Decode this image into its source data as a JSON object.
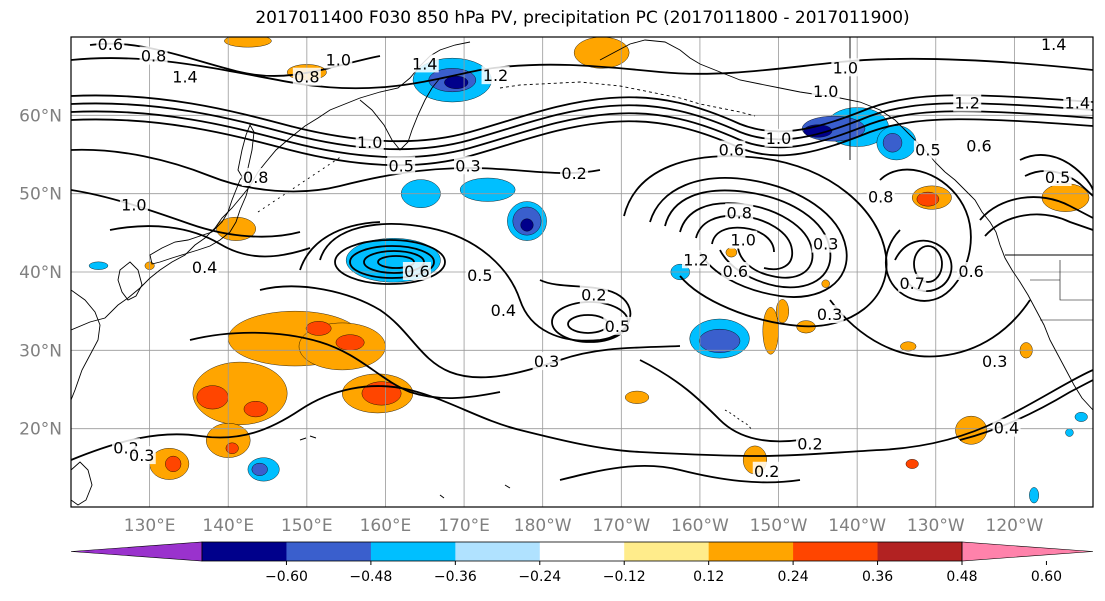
{
  "title": "2017011400 F030 850 hPa PV, precipitation PC (2017011800 - 2017011900)",
  "map": {
    "lat_labels": [
      {
        "label": "60°N",
        "lat": 60
      },
      {
        "label": "50°N",
        "lat": 50
      },
      {
        "label": "40°N",
        "lat": 40
      },
      {
        "label": "30°N",
        "lat": 30
      },
      {
        "label": "20°N",
        "lat": 20
      }
    ],
    "lon_labels": [
      "130°E",
      "140°E",
      "150°E",
      "160°E",
      "170°E",
      "180°W",
      "170°W",
      "160°W",
      "150°W",
      "140°W",
      "130°W",
      "120°W"
    ],
    "lon_range": [
      120,
      250
    ],
    "lat_range": [
      10,
      70
    ],
    "gridlines": true
  },
  "colorbar": {
    "tick_labels": [
      "−0.60",
      "−0.48",
      "−0.36",
      "−0.24",
      "−0.12",
      "0.12",
      "0.24",
      "0.36",
      "0.48",
      "0.60"
    ],
    "colors": [
      "#9a32cd",
      "#00008b",
      "#3a5fcd",
      "#00bfff",
      "#b0e2ff",
      "#ffffff",
      "#ffec8b",
      "#ffa500",
      "#ff4500",
      "#b22222",
      "#ff82ab"
    ],
    "extend": "both"
  },
  "contour_labels": [
    {
      "text": "0.6",
      "lon": 125.0,
      "lat": 69.0
    },
    {
      "text": "0.8",
      "lon": 130.5,
      "lat": 67.5
    },
    {
      "text": "1.4",
      "lon": 134.5,
      "lat": 64.8
    },
    {
      "text": "0.8",
      "lon": 150.0,
      "lat": 64.8
    },
    {
      "text": "1.2",
      "lon": 174.0,
      "lat": 65.0
    },
    {
      "text": "1.4",
      "lon": 165.0,
      "lat": 66.5
    },
    {
      "text": "1.0",
      "lon": 158.0,
      "lat": 56.5
    },
    {
      "text": "0.5",
      "lon": 162.0,
      "lat": 53.5
    },
    {
      "text": "0.3",
      "lon": 170.5,
      "lat": 53.5
    },
    {
      "text": "0.2",
      "lon": 184.0,
      "lat": 52.5
    },
    {
      "text": "0.8",
      "lon": 143.5,
      "lat": 52.0
    },
    {
      "text": "1.0",
      "lon": 128.0,
      "lat": 48.5
    },
    {
      "text": "0.4",
      "lon": 137.0,
      "lat": 40.5
    },
    {
      "text": "0.6",
      "lon": 164.0,
      "lat": 40.0
    },
    {
      "text": "0.5",
      "lon": 172.0,
      "lat": 39.5
    },
    {
      "text": "0.4",
      "lon": 175.0,
      "lat": 35.0
    },
    {
      "text": "0.2",
      "lon": 186.5,
      "lat": 37.0
    },
    {
      "text": "0.5",
      "lon": 189.5,
      "lat": 33.0
    },
    {
      "text": "0.3",
      "lon": 180.5,
      "lat": 28.5
    },
    {
      "text": "0.6",
      "lon": 204.0,
      "lat": 55.5
    },
    {
      "text": "1.0",
      "lon": 210.0,
      "lat": 57.0
    },
    {
      "text": "1.0",
      "lon": 216.0,
      "lat": 63.0
    },
    {
      "text": "0.8",
      "lon": 205.0,
      "lat": 47.5
    },
    {
      "text": "1.0",
      "lon": 205.5,
      "lat": 44.0
    },
    {
      "text": "1.2",
      "lon": 199.5,
      "lat": 41.5
    },
    {
      "text": "0.6",
      "lon": 204.5,
      "lat": 40.0
    },
    {
      "text": "0.3",
      "lon": 216.0,
      "lat": 43.5
    },
    {
      "text": "0.3",
      "lon": 216.5,
      "lat": 34.5
    },
    {
      "text": "0.7",
      "lon": 227.0,
      "lat": 38.5
    },
    {
      "text": "0.8",
      "lon": 223.0,
      "lat": 49.5
    },
    {
      "text": "0.5",
      "lon": 229.0,
      "lat": 55.5
    },
    {
      "text": "0.6",
      "lon": 234.5,
      "lat": 40.0
    },
    {
      "text": "0.6",
      "lon": 235.5,
      "lat": 56.0
    },
    {
      "text": "1.2",
      "lon": 234.0,
      "lat": 61.5
    },
    {
      "text": "1.4",
      "lon": 245.0,
      "lat": 69.0
    },
    {
      "text": "1.4",
      "lon": 248.0,
      "lat": 61.5
    },
    {
      "text": "0.5",
      "lon": 245.5,
      "lat": 52.0
    },
    {
      "text": "0.3",
      "lon": 237.5,
      "lat": 28.5
    },
    {
      "text": "0.4",
      "lon": 239.0,
      "lat": 20.0
    },
    {
      "text": "0.2",
      "lon": 214.0,
      "lat": 18.0
    },
    {
      "text": "0.2",
      "lon": 208.5,
      "lat": 14.5
    },
    {
      "text": "0.2",
      "lon": 127.0,
      "lat": 17.5
    },
    {
      "text": "0.3",
      "lon": 129.0,
      "lat": 16.5
    },
    {
      "text": "1.0",
      "lon": 218.5,
      "lat": 66.0
    },
    {
      "text": "1.0",
      "lon": 154.0,
      "lat": 67.0
    }
  ],
  "precip_patches": [
    {
      "level": "#ffa500",
      "lon": 148.5,
      "lat": 31.5,
      "rx": 8.5,
      "ry": 3.5
    },
    {
      "level": "#ffa500",
      "lon": 154.5,
      "lat": 30.5,
      "rx": 5.5,
      "ry": 3.0
    },
    {
      "level": "#ff4500",
      "lon": 151.5,
      "lat": 32.8,
      "rx": 1.6,
      "ry": 0.9
    },
    {
      "level": "#ff4500",
      "lon": 155.5,
      "lat": 31.0,
      "rx": 1.8,
      "ry": 1.0
    },
    {
      "level": "#ffa500",
      "lon": 141.5,
      "lat": 24.5,
      "rx": 6.0,
      "ry": 4.0
    },
    {
      "level": "#ff4500",
      "lon": 138.0,
      "lat": 24.0,
      "rx": 2.0,
      "ry": 1.5
    },
    {
      "level": "#ff4500",
      "lon": 143.5,
      "lat": 22.5,
      "rx": 1.5,
      "ry": 1.0
    },
    {
      "level": "#ffa500",
      "lon": 159.0,
      "lat": 24.5,
      "rx": 4.5,
      "ry": 2.5
    },
    {
      "level": "#ff4500",
      "lon": 159.5,
      "lat": 24.5,
      "rx": 2.5,
      "ry": 1.5
    },
    {
      "level": "#ffa500",
      "lon": 140.0,
      "lat": 18.5,
      "rx": 2.8,
      "ry": 2.2
    },
    {
      "level": "#ff4500",
      "lon": 140.5,
      "lat": 17.5,
      "rx": 0.8,
      "ry": 0.7
    },
    {
      "level": "#ffa500",
      "lon": 132.5,
      "lat": 15.5,
      "rx": 2.5,
      "ry": 2.0
    },
    {
      "level": "#ff4500",
      "lon": 133.0,
      "lat": 15.5,
      "rx": 1.0,
      "ry": 1.0
    },
    {
      "level": "#00bfff",
      "lon": 144.5,
      "lat": 14.8,
      "rx": 2.0,
      "ry": 1.5
    },
    {
      "level": "#3a5fcd",
      "lon": 144.0,
      "lat": 14.8,
      "rx": 1.0,
      "ry": 0.8
    },
    {
      "level": "#00bfff",
      "lon": 161.0,
      "lat": 41.5,
      "rx": 6.0,
      "ry": 2.8
    },
    {
      "level": "#00bfff",
      "lon": 178.0,
      "lat": 46.5,
      "rx": 2.5,
      "ry": 2.5
    },
    {
      "level": "#3a5fcd",
      "lon": 178.0,
      "lat": 46.5,
      "rx": 1.8,
      "ry": 1.8
    },
    {
      "level": "#00008b",
      "lon": 178.0,
      "lat": 46.0,
      "rx": 0.8,
      "ry": 0.8
    },
    {
      "level": "#00bfff",
      "lon": 164.5,
      "lat": 50.0,
      "rx": 2.5,
      "ry": 1.8
    },
    {
      "level": "#00bfff",
      "lon": 173.0,
      "lat": 50.5,
      "rx": 3.5,
      "ry": 1.5
    },
    {
      "level": "#00bfff",
      "lon": 168.5,
      "lat": 64.5,
      "rx": 5.0,
      "ry": 2.8
    },
    {
      "level": "#3a5fcd",
      "lon": 168.5,
      "lat": 64.5,
      "rx": 3.0,
      "ry": 1.5
    },
    {
      "level": "#00008b",
      "lon": 169.0,
      "lat": 64.2,
      "rx": 1.5,
      "ry": 0.8
    },
    {
      "level": "#ffa500",
      "lon": 142.5,
      "lat": 69.5,
      "rx": 3.0,
      "ry": 0.8
    },
    {
      "level": "#ffa500",
      "lon": 150.0,
      "lat": 65.5,
      "rx": 2.5,
      "ry": 1.0
    },
    {
      "level": "#ffa500",
      "lon": 187.5,
      "lat": 68.0,
      "rx": 3.5,
      "ry": 2.0
    },
    {
      "level": "#ffa500",
      "lon": 141.0,
      "lat": 45.5,
      "rx": 2.5,
      "ry": 1.5
    },
    {
      "level": "#00bfff",
      "lon": 123.5,
      "lat": 40.8,
      "rx": 1.2,
      "ry": 0.5
    },
    {
      "level": "#ffa500",
      "lon": 130.0,
      "lat": 40.8,
      "rx": 0.6,
      "ry": 0.5
    },
    {
      "level": "#00bfff",
      "lon": 220.0,
      "lat": 58.5,
      "rx": 4.0,
      "ry": 2.5
    },
    {
      "level": "#3a5fcd",
      "lon": 217.0,
      "lat": 58.3,
      "rx": 4.0,
      "ry": 1.6
    },
    {
      "level": "#00008b",
      "lon": 215.0,
      "lat": 58.0,
      "rx": 1.8,
      "ry": 0.8
    },
    {
      "level": "#00bfff",
      "lon": 225.0,
      "lat": 56.5,
      "rx": 2.5,
      "ry": 2.2
    },
    {
      "level": "#3a5fcd",
      "lon": 224.5,
      "lat": 56.5,
      "rx": 1.2,
      "ry": 1.2
    },
    {
      "level": "#ffa500",
      "lon": 229.5,
      "lat": 49.5,
      "rx": 2.5,
      "ry": 1.5
    },
    {
      "level": "#ff4500",
      "lon": 229.0,
      "lat": 49.3,
      "rx": 1.4,
      "ry": 0.9
    },
    {
      "level": "#ffa500",
      "lon": 246.5,
      "lat": 49.5,
      "rx": 3.0,
      "ry": 1.8
    },
    {
      "level": "#00bfff",
      "lon": 202.5,
      "lat": 31.5,
      "rx": 3.8,
      "ry": 2.5
    },
    {
      "level": "#3a5fcd",
      "lon": 202.5,
      "lat": 31.2,
      "rx": 2.6,
      "ry": 1.5
    },
    {
      "level": "#ffa500",
      "lon": 209.0,
      "lat": 32.5,
      "rx": 1.0,
      "ry": 3.0
    },
    {
      "level": "#ffa500",
      "lon": 210.5,
      "lat": 35.0,
      "rx": 0.8,
      "ry": 1.5
    },
    {
      "level": "#00bfff",
      "lon": 197.5,
      "lat": 40.0,
      "rx": 1.2,
      "ry": 1.0
    },
    {
      "level": "#ffa500",
      "lon": 204.0,
      "lat": 42.5,
      "rx": 0.7,
      "ry": 0.6
    },
    {
      "level": "#ffa500",
      "lon": 216.0,
      "lat": 38.5,
      "rx": 0.5,
      "ry": 0.5
    },
    {
      "level": "#ffa500",
      "lon": 213.5,
      "lat": 33.0,
      "rx": 1.2,
      "ry": 0.8
    },
    {
      "level": "#ffa500",
      "lon": 192.0,
      "lat": 24.0,
      "rx": 1.5,
      "ry": 0.8
    },
    {
      "level": "#ffa500",
      "lon": 207.0,
      "lat": 16.0,
      "rx": 1.5,
      "ry": 1.8
    },
    {
      "level": "#ffa500",
      "lon": 234.5,
      "lat": 19.8,
      "rx": 2.0,
      "ry": 1.8
    },
    {
      "level": "#ff4500",
      "lon": 227.0,
      "lat": 15.5,
      "rx": 0.8,
      "ry": 0.6
    },
    {
      "level": "#ffa500",
      "lon": 226.5,
      "lat": 30.5,
      "rx": 1.0,
      "ry": 0.6
    },
    {
      "level": "#ffa500",
      "lon": 241.5,
      "lat": 30.0,
      "rx": 0.8,
      "ry": 1.0
    },
    {
      "level": "#00bfff",
      "lon": 248.5,
      "lat": 21.5,
      "rx": 0.8,
      "ry": 0.6
    },
    {
      "level": "#00bfff",
      "lon": 242.5,
      "lat": 11.5,
      "rx": 0.6,
      "ry": 1.0
    },
    {
      "level": "#00bfff",
      "lon": 247.0,
      "lat": 19.5,
      "rx": 0.5,
      "ry": 0.5
    }
  ]
}
